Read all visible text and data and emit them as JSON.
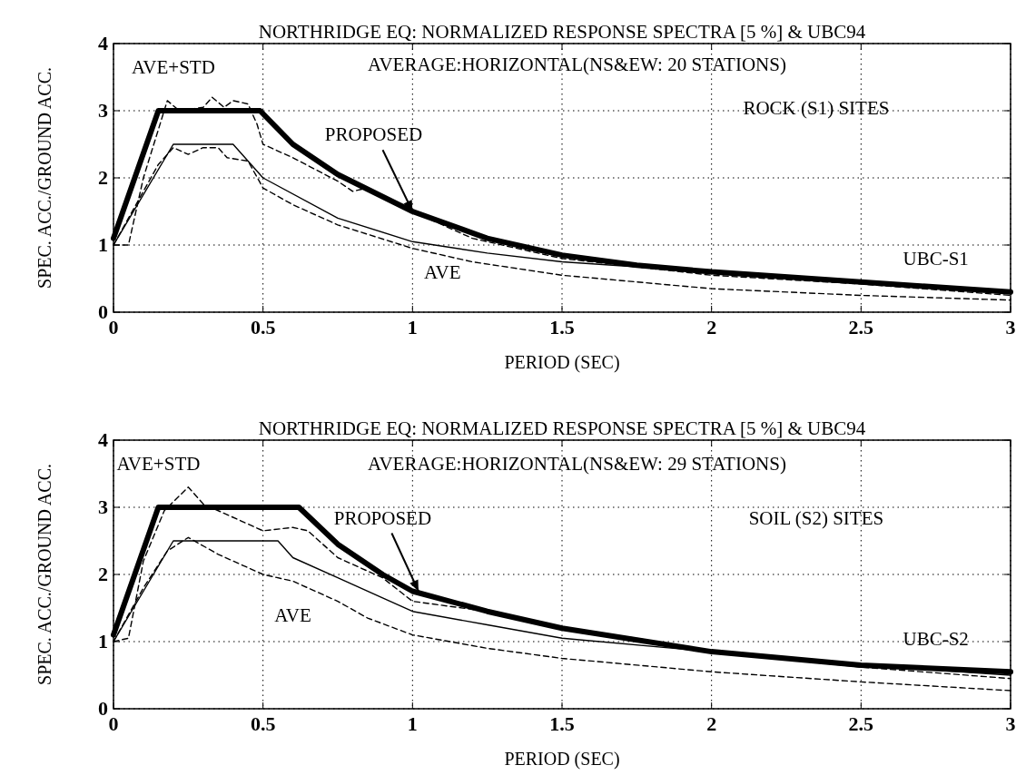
{
  "chart_data": [
    {
      "type": "line",
      "title": "NORTHRIDGE EQ: NORMALIZED RESPONSE SPECTRA [5 %] & UBC94",
      "xlabel": "PERIOD (SEC)",
      "ylabel": "SPEC. ACC./GROUND ACC.",
      "annotations": [
        "AVERAGE:HORIZONTAL(NS&EW: 20 STATIONS)",
        "ROCK (S1) SITES",
        "AVE+STD",
        {
          "text": "PROPOSED",
          "x": 1,
          "y": 1.5
        },
        "UBC-S1",
        "AVE"
      ],
      "xlim": [
        0,
        3
      ],
      "ylim": [
        0,
        4
      ],
      "xticks": [
        0,
        0.5,
        1,
        1.5,
        2,
        2.5,
        3
      ],
      "yticks": [
        0,
        1,
        2,
        3,
        4
      ],
      "grid": true,
      "series": [
        {
          "color": "#000000",
          "line_style": "solid",
          "x": [
            0,
            0.15,
            0.49,
            0.6,
            0.75,
            1,
            1.25,
            1.5,
            1.75,
            2,
            2.5,
            3
          ],
          "values": [
            1.1,
            3,
            3,
            2.5,
            2.05,
            1.5,
            1.1,
            0.85,
            0.7,
            0.6,
            0.45,
            0.3
          ]
        },
        {
          "color": "#000000",
          "line_style": "solid",
          "x": [
            0,
            0.2,
            0.4,
            0.5,
            0.75,
            1,
            1.25,
            1.5,
            2,
            2.5,
            3
          ],
          "values": [
            1,
            2.5,
            2.5,
            2,
            1.4,
            1.05,
            0.88,
            0.75,
            0.6,
            0.45,
            0.3
          ]
        },
        {
          "color": "#000000",
          "line_style": "dashed",
          "x": [
            0,
            0.05,
            0.1,
            0.18,
            0.22,
            0.3,
            0.33,
            0.37,
            0.4,
            0.45,
            0.48,
            0.5,
            0.6,
            0.75,
            0.8,
            0.85,
            1,
            1.2,
            1.5,
            2,
            2.5,
            3
          ],
          "values": [
            1,
            1,
            2,
            3.15,
            3,
            3.05,
            3.2,
            3.05,
            3.15,
            3.1,
            2.8,
            2.5,
            2.3,
            1.95,
            1.8,
            1.85,
            1.5,
            1.1,
            0.8,
            0.55,
            0.42,
            0.25
          ]
        },
        {
          "color": "#000000",
          "line_style": "dashed",
          "x": [
            0,
            0.05,
            0.15,
            0.2,
            0.25,
            0.3,
            0.35,
            0.38,
            0.45,
            0.5,
            0.6,
            0.75,
            1,
            1.2,
            1.5,
            2,
            2.5,
            3
          ],
          "values": [
            1,
            1.4,
            2.2,
            2.45,
            2.35,
            2.45,
            2.45,
            2.3,
            2.25,
            1.85,
            1.6,
            1.3,
            0.95,
            0.75,
            0.55,
            0.35,
            0.25,
            0.18
          ]
        }
      ]
    },
    {
      "type": "line",
      "title": "NORTHRIDGE EQ: NORMALIZED RESPONSE SPECTRA [5 %] & UBC94",
      "xlabel": "PERIOD (SEC)",
      "ylabel": "SPEC. ACC./GROUND ACC.",
      "annotations": [
        "AVERAGE:HORIZONTAL(NS&EW: 29 STATIONS)",
        "SOIL (S2) SITES",
        "AVE+STD",
        {
          "text": "PROPOSED",
          "x": 1.02,
          "y": 1.75
        },
        "UBC-S2",
        "AVE"
      ],
      "xlim": [
        0,
        3
      ],
      "ylim": [
        0,
        4
      ],
      "xticks": [
        0,
        0.5,
        1,
        1.5,
        2,
        2.5,
        3
      ],
      "yticks": [
        0,
        1,
        2,
        3,
        4
      ],
      "grid": true,
      "series": [
        {
          "color": "#000000",
          "line_style": "solid",
          "x": [
            0,
            0.15,
            0.62,
            0.75,
            0.9,
            1,
            1.25,
            1.5,
            2,
            2.5,
            3
          ],
          "values": [
            1.1,
            3,
            3,
            2.45,
            2,
            1.75,
            1.45,
            1.2,
            0.85,
            0.65,
            0.55
          ]
        },
        {
          "color": "#000000",
          "line_style": "solid",
          "x": [
            0,
            0.2,
            0.55,
            0.6,
            0.75,
            0.9,
            1,
            1.25,
            1.5,
            2,
            2.5,
            3
          ],
          "values": [
            1,
            2.5,
            2.5,
            2.25,
            1.95,
            1.65,
            1.45,
            1.25,
            1.05,
            0.85,
            0.65,
            0.5
          ]
        },
        {
          "color": "#000000",
          "line_style": "dashed",
          "x": [
            0,
            0.05,
            0.1,
            0.17,
            0.25,
            0.3,
            0.5,
            0.6,
            0.65,
            0.75,
            0.9,
            1,
            1.25,
            1.5,
            1.75,
            2,
            2.5,
            3
          ],
          "values": [
            1,
            1.05,
            2.2,
            2.95,
            3.3,
            3.05,
            2.65,
            2.7,
            2.65,
            2.25,
            1.95,
            1.6,
            1.45,
            1.2,
            1.05,
            0.85,
            0.62,
            0.45
          ]
        },
        {
          "color": "#000000",
          "line_style": "dashed",
          "x": [
            0,
            0.1,
            0.18,
            0.25,
            0.35,
            0.5,
            0.6,
            0.75,
            0.85,
            1,
            1.25,
            1.5,
            2,
            2.5,
            3
          ],
          "values": [
            1,
            1.8,
            2.35,
            2.55,
            2.3,
            2,
            1.9,
            1.6,
            1.35,
            1.1,
            0.9,
            0.75,
            0.55,
            0.4,
            0.27
          ]
        }
      ]
    }
  ]
}
